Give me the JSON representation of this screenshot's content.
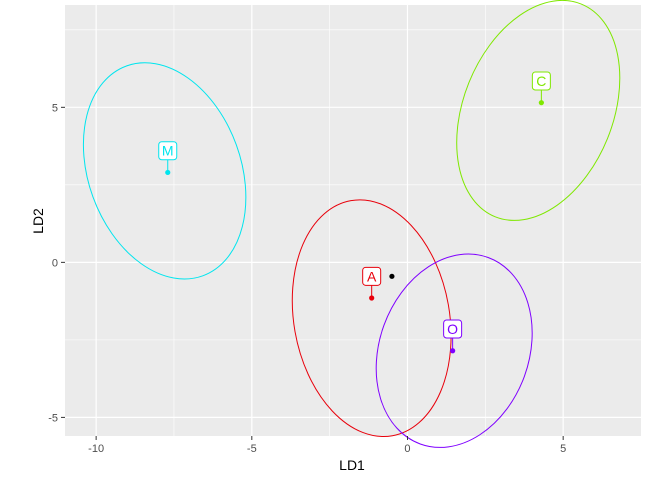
{
  "chart_data": {
    "type": "scatter",
    "title": "",
    "xlabel": "LD1",
    "ylabel": "LD2",
    "xlim": [
      -11.0,
      7.5
    ],
    "ylim": [
      -5.6,
      8.3
    ],
    "x_ticks": [
      -10,
      -5,
      0,
      5
    ],
    "x_tick_labels": [
      "-10",
      "-5",
      "0",
      "5"
    ],
    "y_ticks": [
      -5,
      0,
      5
    ],
    "y_tick_labels": [
      "-5",
      "0",
      "5"
    ],
    "grid": true,
    "panel_background": "#ebebeb",
    "grid_color": "#ffffff",
    "series": [
      {
        "name": "A",
        "color": "#e8000b",
        "centroid": [
          -1.15,
          -1.15
        ],
        "label_pos": [
          -1.15,
          -0.45
        ],
        "ellipse": {
          "center": [
            -1.15,
            -1.8
          ],
          "rx": 2.5,
          "ry": 3.85,
          "angle_deg": -10
        }
      },
      {
        "name": "C",
        "color": "#7fe800",
        "centroid": [
          4.3,
          5.15
        ],
        "label_pos": [
          4.3,
          5.85
        ],
        "ellipse": {
          "center": [
            4.2,
            4.9
          ],
          "rx": 2.4,
          "ry": 3.7,
          "angle_deg": 22
        }
      },
      {
        "name": "M",
        "color": "#00e5ee",
        "centroid": [
          -7.7,
          2.9
        ],
        "label_pos": [
          -7.7,
          3.6
        ],
        "ellipse": {
          "center": [
            -7.8,
            2.95
          ],
          "rx": 2.45,
          "ry": 3.6,
          "angle_deg": -20
        }
      },
      {
        "name": "O",
        "color": "#7f00ff",
        "centroid": [
          1.45,
          -2.85
        ],
        "label_pos": [
          1.45,
          -2.15
        ],
        "ellipse": {
          "center": [
            1.5,
            -2.85
          ],
          "rx": 2.4,
          "ry": 3.2,
          "angle_deg": 20
        }
      }
    ],
    "overall_mean": {
      "x": -0.5,
      "y": -0.45,
      "color": "#000000"
    }
  }
}
